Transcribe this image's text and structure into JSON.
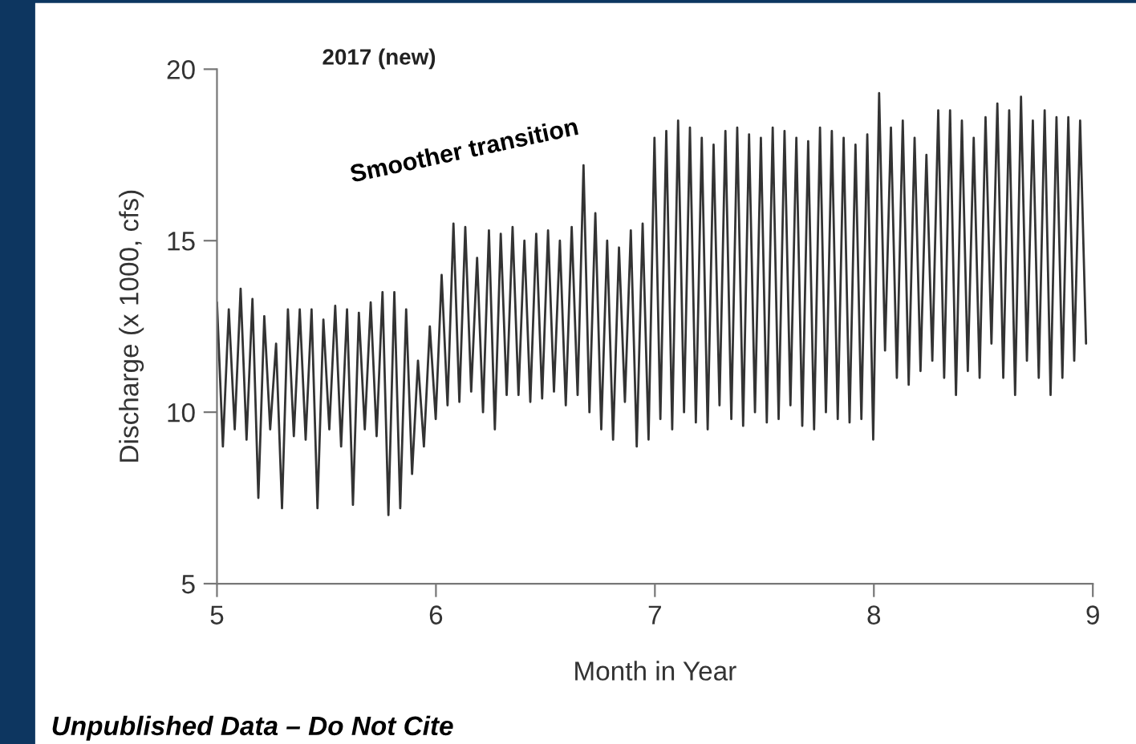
{
  "chart_data": {
    "type": "line",
    "title": "2017 (new)",
    "xlabel": "Month in Year",
    "ylabel": "Discharge (x 1000, cfs)",
    "annotations": [
      "Smoother transition",
      "Unpublished Data – Do Not Cite"
    ],
    "xlim": [
      5,
      9
    ],
    "xticks": [
      5,
      6,
      7,
      8,
      9
    ],
    "ylim": [
      5,
      20
    ],
    "yticks": [
      5,
      10,
      15,
      20
    ],
    "grid": false,
    "legend": false,
    "marker": "none",
    "line_style": "solid",
    "x": [
      5.0,
      5.027,
      5.054,
      5.081,
      5.108,
      5.135,
      5.162,
      5.189,
      5.216,
      5.243,
      5.27,
      5.297,
      5.324,
      5.351,
      5.378,
      5.405,
      5.432,
      5.459,
      5.486,
      5.513,
      5.54,
      5.567,
      5.594,
      5.621,
      5.648,
      5.675,
      5.702,
      5.729,
      5.756,
      5.783,
      5.81,
      5.837,
      5.864,
      5.891,
      5.918,
      5.945,
      5.972,
      5.999,
      6.026,
      6.053,
      6.08,
      6.107,
      6.134,
      6.161,
      6.188,
      6.215,
      6.242,
      6.269,
      6.296,
      6.323,
      6.35,
      6.377,
      6.404,
      6.431,
      6.458,
      6.485,
      6.512,
      6.539,
      6.566,
      6.593,
      6.62,
      6.647,
      6.674,
      6.701,
      6.728,
      6.755,
      6.782,
      6.809,
      6.836,
      6.863,
      6.89,
      6.917,
      6.944,
      6.971,
      6.998,
      7.025,
      7.052,
      7.079,
      7.106,
      7.133,
      7.16,
      7.187,
      7.214,
      7.241,
      7.268,
      7.295,
      7.322,
      7.349,
      7.376,
      7.403,
      7.43,
      7.457,
      7.484,
      7.511,
      7.538,
      7.565,
      7.592,
      7.619,
      7.646,
      7.673,
      7.7,
      7.727,
      7.754,
      7.781,
      7.808,
      7.835,
      7.862,
      7.889,
      7.916,
      7.943,
      7.97,
      7.997,
      8.024,
      8.051,
      8.078,
      8.105,
      8.132,
      8.159,
      8.186,
      8.213,
      8.24,
      8.267,
      8.294,
      8.321,
      8.348,
      8.375,
      8.402,
      8.429,
      8.456,
      8.483,
      8.51,
      8.537,
      8.564,
      8.591,
      8.618,
      8.645,
      8.672,
      8.699,
      8.726,
      8.753,
      8.78,
      8.807,
      8.834,
      8.861,
      8.888,
      8.915,
      8.942,
      8.969
    ],
    "series": [
      {
        "color": "#333333",
        "values": [
          13.2,
          9.0,
          13.0,
          9.5,
          13.6,
          9.2,
          13.3,
          7.5,
          12.8,
          9.5,
          12.0,
          7.2,
          13.0,
          9.3,
          13.0,
          9.2,
          13.0,
          7.2,
          12.7,
          9.5,
          13.1,
          9.0,
          13.0,
          7.3,
          12.9,
          9.5,
          13.2,
          9.3,
          13.5,
          7.0,
          13.5,
          7.2,
          13.0,
          8.2,
          11.5,
          9.0,
          12.5,
          9.8,
          14.0,
          10.2,
          15.5,
          10.3,
          15.4,
          10.6,
          14.5,
          10.0,
          15.3,
          9.5,
          15.2,
          10.5,
          15.4,
          10.5,
          15.0,
          10.3,
          15.2,
          10.4,
          15.3,
          10.6,
          15.0,
          10.2,
          15.4,
          10.5,
          17.2,
          10.0,
          15.8,
          9.5,
          15.0,
          9.2,
          14.8,
          10.3,
          15.3,
          9.0,
          15.5,
          9.2,
          18.0,
          9.8,
          18.2,
          9.5,
          18.5,
          10.0,
          18.3,
          9.7,
          18.0,
          9.5,
          17.8,
          10.2,
          18.2,
          9.8,
          18.3,
          9.6,
          18.1,
          10.0,
          18.0,
          9.7,
          18.3,
          9.8,
          18.2,
          10.2,
          18.0,
          9.6,
          17.9,
          9.5,
          18.3,
          10.0,
          18.2,
          9.8,
          18.0,
          9.7,
          17.8,
          9.8,
          18.1,
          9.2,
          19.3,
          11.8,
          18.3,
          11.0,
          18.5,
          10.8,
          18.0,
          11.2,
          17.5,
          11.5,
          18.8,
          11.0,
          18.8,
          10.5,
          18.5,
          11.2,
          18.0,
          11.0,
          18.6,
          12.0,
          19.0,
          11.0,
          18.8,
          10.5,
          19.2,
          11.5,
          18.5,
          11.0,
          18.8,
          10.5,
          18.6,
          11.0,
          18.6,
          11.5,
          18.5,
          12.0
        ]
      }
    ]
  }
}
